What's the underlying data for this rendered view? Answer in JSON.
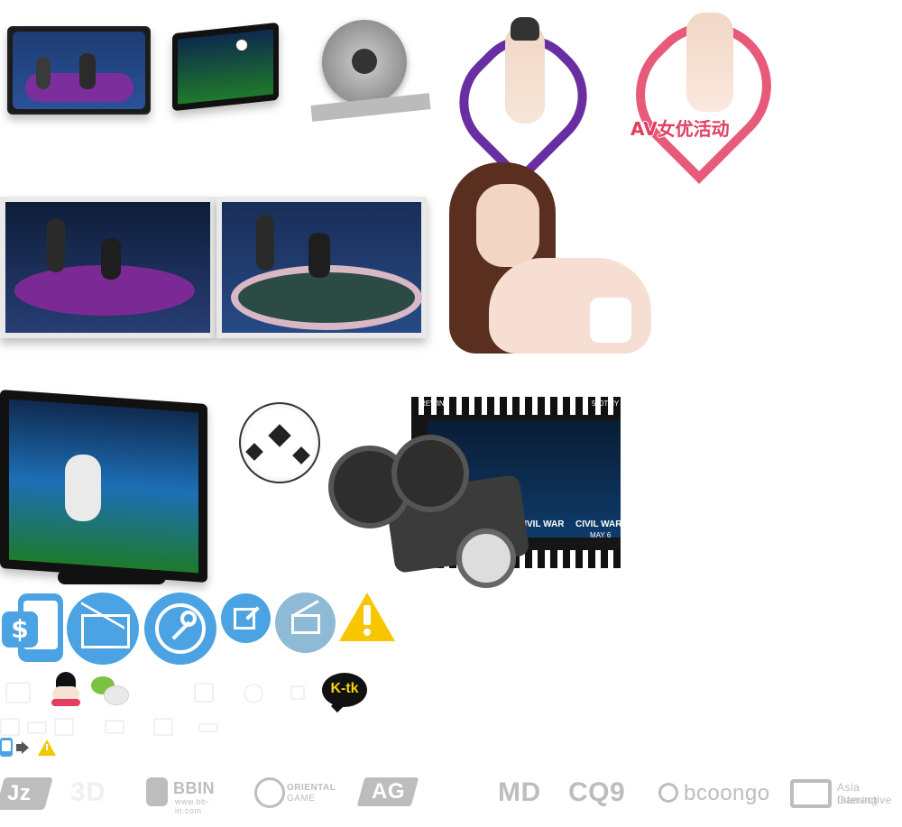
{
  "labels": {
    "av": "AV女优活动",
    "kik": "K-tk",
    "film_rewind": "REWIND",
    "film_fps": "500TMY",
    "film_title_1": "CIVIL WAR",
    "film_title_2": "CIVIL WAR",
    "film_subtitle": "MAY 6"
  },
  "brand_logos": [
    {
      "text": "Jz"
    },
    {
      "text": "3D"
    },
    {
      "text": "BBIN",
      "sub": "www.bb-in.com"
    },
    {
      "text": "ORIENTAL",
      "sub": "GAME"
    },
    {
      "text": "AG"
    },
    {
      "text": "MD"
    },
    {
      "text": "CQ9"
    },
    {
      "text": "bcoongo"
    },
    {
      "text": "Asia Gaming",
      "sub": "Interactive"
    }
  ],
  "icons": {
    "mobile_deposit": "mobile-deposit-icon",
    "email": "email-icon",
    "key": "key-icon",
    "edit": "edit-icon",
    "mail_open": "mail-open-icon",
    "warning": "warning-icon",
    "qq": "qq-icon",
    "wechat": "wechat-icon",
    "mini_mobile": "mobile-icon",
    "mini_speaker": "speaker-icon",
    "mini_warning": "warning-icon"
  },
  "colors": {
    "primary_blue": "#4ba3e3",
    "warning_yellow": "#f7c600",
    "purple": "#6a2ea3",
    "pink": "#e33e62",
    "kik_yellow": "#f4d210"
  }
}
